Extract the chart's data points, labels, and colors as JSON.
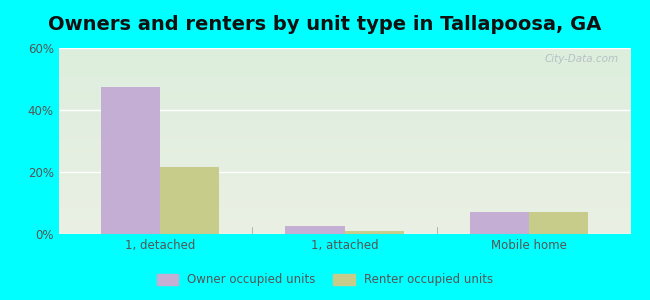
{
  "title": "Owners and renters by unit type in Tallapoosa, GA",
  "categories": [
    "1, detached",
    "1, attached",
    "Mobile home"
  ],
  "owner_values": [
    47.5,
    2.5,
    7.0
  ],
  "renter_values": [
    21.5,
    1.0,
    7.0
  ],
  "owner_color": "#c4aed4",
  "renter_color": "#c8cc8a",
  "ylim": [
    0,
    60
  ],
  "yticks": [
    0,
    20,
    40,
    60
  ],
  "ytick_labels": [
    "0%",
    "20%",
    "40%",
    "60%"
  ],
  "legend_owner": "Owner occupied units",
  "legend_renter": "Renter occupied units",
  "background_color": "#00ffff",
  "plot_bg_color": "#e8f0e0",
  "title_fontsize": 14,
  "bar_width": 0.32,
  "watermark": "City-Data.com"
}
